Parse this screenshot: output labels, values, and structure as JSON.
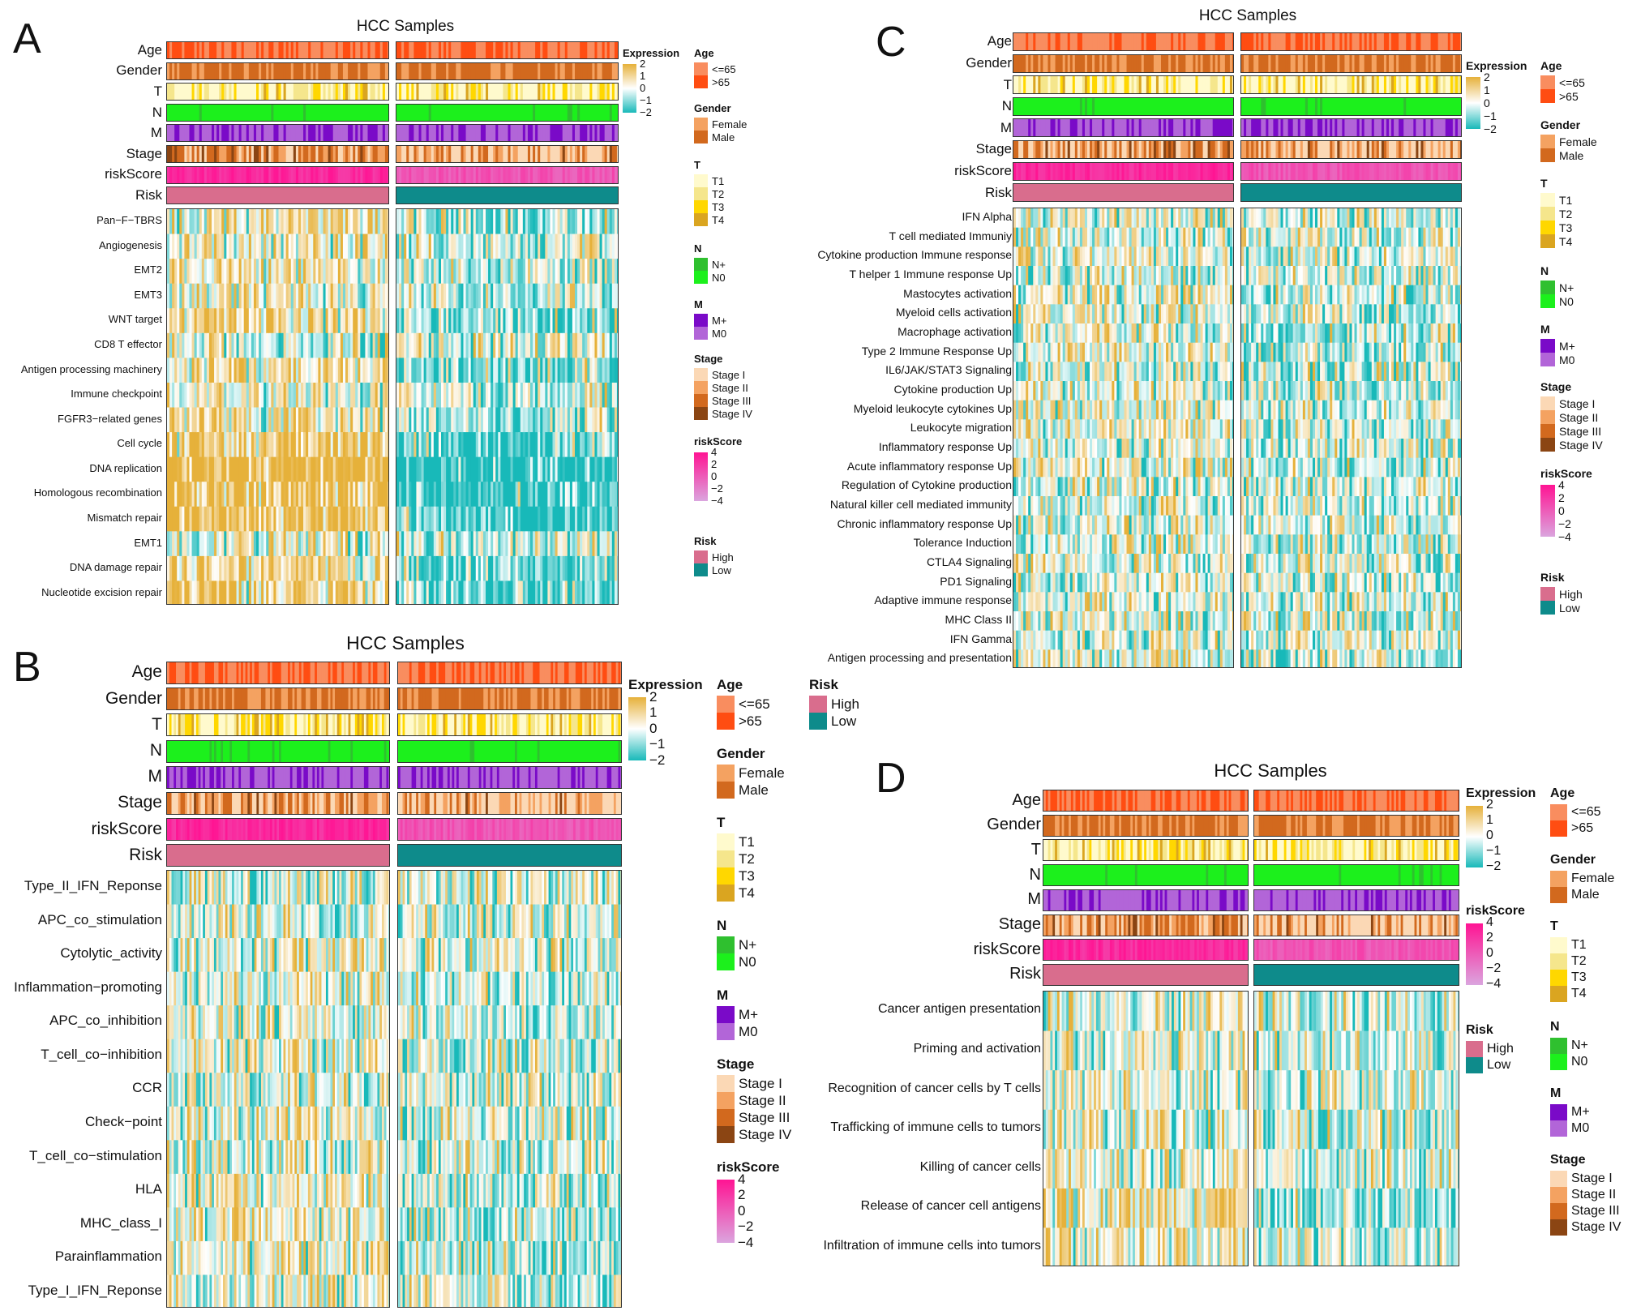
{
  "figure_title": "Heatmaps of pathway / immune signature scores across HCC samples by risk group",
  "colors": {
    "age": {
      "<=65": "#f98d5f",
      ">65": "#ff4d12"
    },
    "gender": {
      "Female": "#f4a261",
      "Male": "#d2691e"
    },
    "T": {
      "T1": "#fffacd",
      "T2": "#f5e68c",
      "T3": "#ffd700",
      "T4": "#daa520"
    },
    "N": {
      "N+": "#2fc02f",
      "N0": "#1cf01c"
    },
    "M": {
      "M+": "#7a0ac8",
      "M0": "#b265d8"
    },
    "stage": {
      "Stage I": "#fbd8b5",
      "Stage II": "#f4a261",
      "Stage III": "#d2691e",
      "Stage IV": "#8b4513"
    },
    "risk": {
      "High": "#d96d8d",
      "Low": "#0e8b8b"
    },
    "expression_high": "#e6b13a",
    "expression_mid": "#ffffff",
    "expression_low": "#18b9b9",
    "riskscore_high": "#ff1493",
    "riskscore_low": "#dba5de"
  },
  "legend_text": {
    "expression": "Expression",
    "expression_ticks": [
      "2",
      "1",
      "0",
      "−1",
      "−2"
    ],
    "riskscore": "riskScore",
    "riskscore_ticks": [
      "4",
      "2",
      "0",
      "−2",
      "−4"
    ],
    "age": "Age",
    "age_items": [
      "<=65",
      ">65"
    ],
    "gender": "Gender",
    "gender_items": [
      "Female",
      "Male"
    ],
    "t": "T",
    "t_items": [
      "T1",
      "T2",
      "T3",
      "T4"
    ],
    "n": "N",
    "n_items": [
      "N+",
      "N0"
    ],
    "m": "M",
    "m_items": [
      "M+",
      "M0"
    ],
    "stage": "Stage",
    "stage_items": [
      "Stage I",
      "Stage II",
      "Stage III",
      "Stage IV"
    ],
    "risk": "Risk",
    "risk_items": [
      "High",
      "Low"
    ]
  },
  "annotation_rows": [
    "Age",
    "Gender",
    "T",
    "N",
    "M",
    "Stage",
    "riskScore",
    "Risk"
  ],
  "chart_data": [
    {
      "panel": "A",
      "type": "heatmap",
      "title": "HCC Samples",
      "column_groups": [
        "High",
        "Low"
      ],
      "rows": [
        "Pan−F−TBRS",
        "Angiogenesis",
        "EMT2",
        "EMT3",
        "WNT target",
        "CD8 T effector",
        "Antigen processing machinery",
        "Immune checkpoint",
        "FGFR3−related genes",
        "Cell cycle",
        "DNA replication",
        "Homologous recombination",
        "Mismatch repair",
        "EMT1",
        "DNA damage repair",
        "Nucleotide excision repair"
      ],
      "group_mean_expression": {
        "High": [
          0.3,
          0.2,
          0.3,
          0.2,
          0.4,
          -0.1,
          0.4,
          0.2,
          0.3,
          0.7,
          1.0,
          0.9,
          0.9,
          0.1,
          0.6,
          0.6
        ],
        "Low": [
          -0.3,
          -0.1,
          -0.2,
          -0.2,
          -0.4,
          0.1,
          -0.4,
          -0.2,
          -0.3,
          -0.7,
          -1.0,
          -0.9,
          -0.9,
          -0.1,
          -0.6,
          -0.6
        ]
      },
      "expression_range": [
        -2,
        2
      ]
    },
    {
      "panel": "B",
      "type": "heatmap",
      "title": "HCC Samples",
      "column_groups": [
        "High",
        "Low"
      ],
      "rows": [
        "Type_II_IFN_Reponse",
        "APC_co_stimulation",
        "Cytolytic_activity",
        "Inflammation−promoting",
        "APC_co_inhibition",
        "T_cell_co−inhibition",
        "CCR",
        "Check−point",
        "T_cell_co−stimulation",
        "HLA",
        "MHC_class_I",
        "Parainflammation",
        "Type_I_IFN_Reponse"
      ],
      "group_mean_expression": {
        "High": [
          0.0,
          0.1,
          0.0,
          0.1,
          0.1,
          0.1,
          0.0,
          0.1,
          0.1,
          0.2,
          0.3,
          0.3,
          0.1
        ],
        "Low": [
          0.0,
          -0.1,
          0.0,
          -0.1,
          -0.1,
          -0.1,
          0.0,
          -0.1,
          -0.1,
          -0.2,
          -0.3,
          -0.3,
          -0.1
        ]
      },
      "expression_range": [
        -2,
        2
      ]
    },
    {
      "panel": "C",
      "type": "heatmap",
      "title": "HCC Samples",
      "column_groups": [
        "High",
        "Low"
      ],
      "rows": [
        "IFN Alpha",
        "T cell mediated Immuniy",
        "Cytokine production Immune response",
        "T helper 1 Immune response Up",
        "Mastocytes activation",
        "Myeloid cells activation",
        "Macrophage activation",
        "Type 2 Immune Response Up",
        "IL6/JAK/STAT3 Signaling",
        "Cytokine production Up",
        "Myeloid leukocyte cytokines Up",
        "Leukocyte migration",
        "Inflammatory response Up",
        "Acute inflammatory response Up",
        "Regulation of Cytokine production",
        "Natural killer cell mediated immunity",
        "Chronic inflammatory response Up",
        "Tolerance Induction",
        "CTLA4 Signaling",
        "PD1 Signaling",
        "Adaptive immune response",
        "MHC Class II",
        "IFN Gamma",
        "Antigen processing and presentation"
      ],
      "group_mean_expression": {
        "High": [
          0.1,
          0.0,
          0.1,
          0.0,
          0.1,
          0.1,
          0.1,
          0.2,
          0.1,
          0.1,
          0.1,
          0.1,
          0.1,
          0.1,
          0.1,
          0.0,
          0.1,
          0.1,
          0.1,
          0.0,
          0.0,
          0.1,
          0.0,
          0.1
        ],
        "Low": [
          -0.1,
          0.0,
          -0.1,
          0.0,
          -0.1,
          -0.1,
          -0.1,
          -0.2,
          -0.1,
          -0.1,
          -0.1,
          -0.1,
          -0.1,
          -0.1,
          -0.1,
          0.0,
          -0.1,
          -0.1,
          -0.1,
          0.0,
          0.0,
          -0.1,
          0.0,
          -0.1
        ]
      },
      "expression_range": [
        -2,
        2
      ]
    },
    {
      "panel": "D",
      "type": "heatmap",
      "title": "HCC Samples",
      "column_groups": [
        "High",
        "Low"
      ],
      "rows": [
        "Cancer antigen presentation",
        "Priming and activation",
        "Recognition of cancer cells by T cells",
        "Trafficking of immune cells to tumors",
        "Killing of cancer cells",
        "Release of cancer cell antigens",
        "Infiltration of immune cells into tumors"
      ],
      "group_mean_expression": {
        "High": [
          0.1,
          0.1,
          0.1,
          0.1,
          0.1,
          0.4,
          0.2
        ],
        "Low": [
          -0.1,
          -0.1,
          -0.1,
          -0.1,
          -0.1,
          -0.4,
          -0.2
        ]
      },
      "expression_range": [
        -2,
        2
      ]
    }
  ]
}
